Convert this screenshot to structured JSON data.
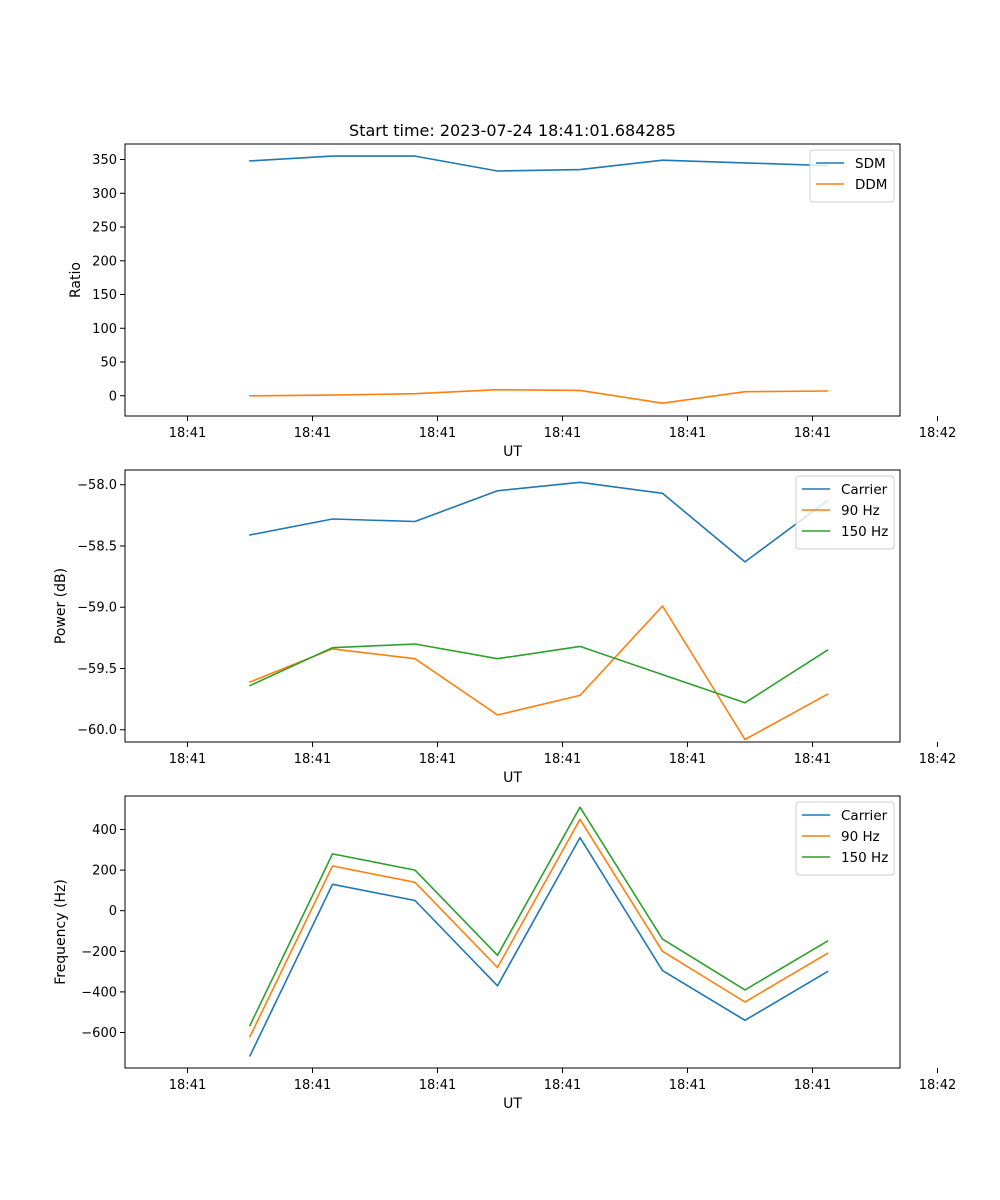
{
  "figure": {
    "title": "Start time: 2023-07-24 18:41:01.684285"
  },
  "colors": {
    "blue": "#1f77b4",
    "orange": "#ff7f0e",
    "green": "#2ca02c"
  },
  "chart_data": [
    {
      "type": "line",
      "title": "Start time: 2023-07-24 18:41:01.684285",
      "xlabel": "UT",
      "ylabel": "Ratio",
      "xlim": [
        -0.5,
        5.7
      ],
      "x_ticks": [
        0,
        1,
        2,
        3,
        4,
        5,
        6
      ],
      "x_tick_labels": [
        "18:41",
        "18:41",
        "18:41",
        "18:41",
        "18:41",
        "18:41",
        "18:42"
      ],
      "ylim": [
        -30,
        373
      ],
      "y_ticks": [
        0,
        50,
        100,
        150,
        200,
        250,
        300,
        350
      ],
      "y_tick_labels": [
        "0",
        "50",
        "100",
        "150",
        "200",
        "250",
        "300",
        "350"
      ],
      "x": [
        0.5,
        1.16,
        1.82,
        2.48,
        3.14,
        3.8,
        4.46,
        5.12
      ],
      "series": [
        {
          "name": "SDM",
          "color": "#1f77b4",
          "values": [
            348,
            355,
            355,
            333,
            335,
            349,
            345,
            341
          ]
        },
        {
          "name": "DDM",
          "color": "#ff7f0e",
          "values": [
            0,
            1,
            3,
            9,
            8,
            -11,
            6,
            7
          ]
        }
      ],
      "legend": "upper right"
    },
    {
      "type": "line",
      "title": "",
      "xlabel": "UT",
      "ylabel": "Power (dB)",
      "xlim": [
        -0.5,
        5.7
      ],
      "x_ticks": [
        0,
        1,
        2,
        3,
        4,
        5,
        6
      ],
      "x_tick_labels": [
        "18:41",
        "18:41",
        "18:41",
        "18:41",
        "18:41",
        "18:41",
        "18:42"
      ],
      "ylim": [
        -60.1,
        -57.88
      ],
      "y_ticks": [
        -60.0,
        -59.5,
        -59.0,
        -58.5,
        -58.0
      ],
      "y_tick_labels": [
        "−60.0",
        "−59.5",
        "−59.0",
        "−58.5",
        "−58.0"
      ],
      "x": [
        0.5,
        1.16,
        1.82,
        2.48,
        3.14,
        3.8,
        4.46,
        5.12
      ],
      "series": [
        {
          "name": "Carrier",
          "color": "#1f77b4",
          "values": [
            -58.41,
            -58.28,
            -58.3,
            -58.05,
            -57.98,
            -58.07,
            -58.63,
            -58.13
          ]
        },
        {
          "name": "90 Hz",
          "color": "#ff7f0e",
          "values": [
            -59.61,
            -59.34,
            -59.42,
            -59.88,
            -59.72,
            -58.99,
            -60.08,
            -59.71
          ]
        },
        {
          "name": "150 Hz",
          "color": "#2ca02c",
          "values": [
            -59.64,
            -59.33,
            -59.3,
            -59.42,
            -59.32,
            -59.55,
            -59.78,
            -59.35
          ]
        }
      ],
      "legend": "upper right"
    },
    {
      "type": "line",
      "title": "",
      "xlabel": "UT",
      "ylabel": "Frequency (Hz)",
      "xlim": [
        -0.5,
        5.7
      ],
      "x_ticks": [
        0,
        1,
        2,
        3,
        4,
        5,
        6
      ],
      "x_tick_labels": [
        "18:41",
        "18:41",
        "18:41",
        "18:41",
        "18:41",
        "18:41",
        "18:42"
      ],
      "ylim": [
        -775,
        565
      ],
      "y_ticks": [
        -600,
        -400,
        -200,
        0,
        200,
        400
      ],
      "y_tick_labels": [
        "−600",
        "−400",
        "−200",
        "0",
        "200",
        "400"
      ],
      "x": [
        0.5,
        1.16,
        1.82,
        2.48,
        3.14,
        3.8,
        4.46,
        5.12
      ],
      "series": [
        {
          "name": "Carrier",
          "color": "#1f77b4",
          "values": [
            -715,
            130,
            50,
            -370,
            360,
            -295,
            -540,
            -300
          ]
        },
        {
          "name": "90 Hz",
          "color": "#ff7f0e",
          "values": [
            -620,
            220,
            140,
            -280,
            450,
            -200,
            -450,
            -210
          ]
        },
        {
          "name": "150 Hz",
          "color": "#2ca02c",
          "values": [
            -565,
            280,
            200,
            -220,
            510,
            -140,
            -390,
            -150
          ]
        }
      ],
      "legend": "upper right"
    }
  ]
}
